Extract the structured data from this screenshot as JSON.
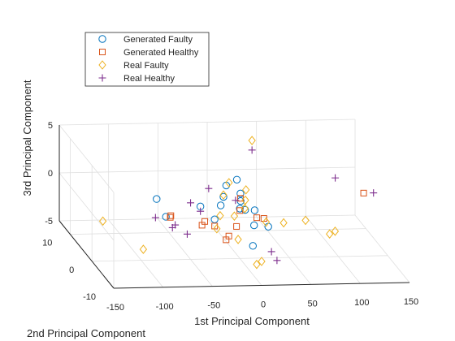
{
  "chart_data": {
    "type": "scatter",
    "projection": "3d",
    "grid": true,
    "legend_position": "top-left",
    "xlabel": "1st Principal Component",
    "ylabel": "2nd Principal Component",
    "zlabel": "3rd Principal Component",
    "xlim": [
      -150,
      150
    ],
    "ylim": [
      -10,
      15
    ],
    "zlim": [
      -5,
      5
    ],
    "xticks": [
      "-150",
      "-100",
      "-50",
      "0",
      "50",
      "100",
      "150"
    ],
    "yticks": [
      "-10",
      "0",
      "10"
    ],
    "zticks": [
      "-5",
      "0",
      "5"
    ],
    "series": [
      {
        "name": "Generated Faulty",
        "marker": "circle",
        "color": "#0072BD",
        "points": [
          [
            0,
            0,
            0.2
          ],
          [
            5,
            2,
            1.2
          ],
          [
            -40,
            0,
            0.5
          ],
          [
            -30,
            -2,
            -0.3
          ],
          [
            10,
            -2,
            -1.0
          ],
          [
            -10,
            3,
            0.6
          ],
          [
            0,
            -6,
            -2.0
          ],
          [
            15,
            0,
            0.0
          ],
          [
            -5,
            4,
            1.5
          ],
          [
            -75,
            0,
            -0.5
          ],
          [
            3,
            1,
            0.7
          ],
          [
            20,
            -4,
            -0.6
          ],
          [
            -15,
            2,
            0.0
          ],
          [
            8,
            5,
            1.8
          ],
          [
            -80,
            2,
            0.8
          ],
          [
            12,
            3,
            -0.8
          ]
        ]
      },
      {
        "name": "Generated Healthy",
        "marker": "square",
        "color": "#D95319",
        "points": [
          [
            -40,
            -2,
            -0.5
          ],
          [
            -75,
            -2,
            0.0
          ],
          [
            -70,
            0,
            -0.4
          ],
          [
            -20,
            -4,
            -1.5
          ],
          [
            0,
            0,
            0.0
          ],
          [
            20,
            -2,
            -0.3
          ],
          [
            130,
            2,
            1.0
          ],
          [
            -30,
            -2,
            -1.0
          ],
          [
            -10,
            -3,
            -0.8
          ],
          [
            5,
            2,
            0.7
          ],
          [
            -25,
            -5,
            -1.6
          ],
          [
            15,
            -1,
            -0.5
          ],
          [
            -45,
            -3,
            -0.6
          ]
        ]
      },
      {
        "name": "Real Faulty",
        "marker": "diamond",
        "color": "#EDB120",
        "points": [
          [
            -150,
            -5,
            0.6
          ],
          [
            -120,
            -10,
            -1.0
          ],
          [
            30,
            8,
            5.0
          ],
          [
            60,
            -3,
            -0.3
          ],
          [
            80,
            -5,
            -1.2
          ],
          [
            90,
            -3,
            -1.5
          ],
          [
            0,
            -10,
            -2.5
          ],
          [
            -5,
            -10,
            -2.8
          ],
          [
            10,
            2,
            0.5
          ],
          [
            -10,
            3,
            0.8
          ],
          [
            5,
            0,
            0.2
          ],
          [
            -20,
            0,
            -0.5
          ],
          [
            0,
            5,
            1.5
          ],
          [
            -30,
            -3,
            -1.0
          ],
          [
            20,
            -3,
            -0.4
          ],
          [
            -15,
            -6,
            -1.3
          ],
          [
            40,
            -2,
            -0.8
          ],
          [
            -10,
            -2,
            0.0
          ],
          [
            15,
            4,
            1.0
          ]
        ]
      },
      {
        "name": "Real Healthy",
        "marker": "plus",
        "color": "#7E2F8E",
        "points": [
          [
            30,
            8,
            4.0
          ],
          [
            -50,
            0,
            0.9
          ],
          [
            -60,
            -3,
            -1.5
          ],
          [
            -70,
            -2,
            -0.8
          ],
          [
            10,
            -10,
            -1.5
          ],
          [
            110,
            6,
            1.5
          ],
          [
            140,
            2,
            1.0
          ],
          [
            -25,
            3,
            1.5
          ],
          [
            20,
            -8,
            -3.0
          ],
          [
            -40,
            0,
            0.0
          ],
          [
            0,
            2,
            0.5
          ],
          [
            -90,
            -2,
            0.0
          ],
          [
            -75,
            -3,
            -0.8
          ]
        ]
      }
    ]
  }
}
